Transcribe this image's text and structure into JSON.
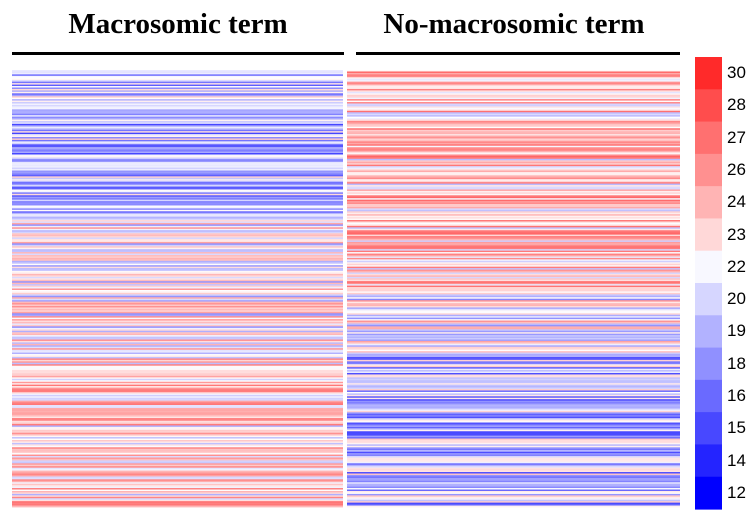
{
  "chart_data": {
    "type": "heatmap",
    "groups": [
      {
        "label": "Macrosomic term"
      },
      {
        "label": "No-macrosomic term"
      }
    ],
    "colorbar": {
      "min": 12,
      "max": 30,
      "ticks": [
        "30",
        "28",
        "27",
        "26",
        "24",
        "23",
        "22",
        "20",
        "19",
        "18",
        "16",
        "15",
        "14",
        "12"
      ],
      "colors": [
        "#ff2a2a",
        "#ff4d4d",
        "#ff7070",
        "#ff9090",
        "#ffb4b4",
        "#ffd8d8",
        "#f8f8ff",
        "#d6d6ff",
        "#b2b2ff",
        "#9090ff",
        "#6a6aff",
        "#4848ff",
        "#2424ff",
        "#0000ff"
      ],
      "position": "right"
    },
    "rows": 300
  }
}
